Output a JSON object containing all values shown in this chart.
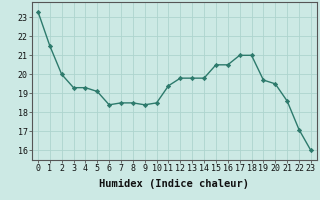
{
  "x": [
    0,
    1,
    2,
    3,
    4,
    5,
    6,
    7,
    8,
    9,
    10,
    11,
    12,
    13,
    14,
    15,
    16,
    17,
    18,
    19,
    20,
    21,
    22,
    23
  ],
  "y": [
    23.3,
    21.5,
    20.0,
    19.3,
    19.3,
    19.1,
    18.4,
    18.5,
    18.5,
    18.4,
    18.5,
    19.4,
    19.8,
    19.8,
    19.8,
    20.5,
    20.5,
    21.0,
    21.0,
    19.7,
    19.5,
    18.6,
    17.1,
    16.0
  ],
  "xlabel": "Humidex (Indice chaleur)",
  "line_color": "#2d7a6c",
  "marker": "D",
  "marker_size": 2.2,
  "line_width": 1.0,
  "bg_color": "#cce9e4",
  "grid_color": "#aed4ce",
  "axis_bg": "#cce9e4",
  "ylim": [
    15.5,
    23.8
  ],
  "xlim": [
    -0.5,
    23.5
  ],
  "yticks": [
    16,
    17,
    18,
    19,
    20,
    21,
    22,
    23
  ],
  "xticks": [
    0,
    1,
    2,
    3,
    4,
    5,
    6,
    7,
    8,
    9,
    10,
    11,
    12,
    13,
    14,
    15,
    16,
    17,
    18,
    19,
    20,
    21,
    22,
    23
  ],
  "xtick_labels": [
    "0",
    "1",
    "2",
    "3",
    "4",
    "5",
    "6",
    "7",
    "8",
    "9",
    "10",
    "11",
    "12",
    "13",
    "14",
    "15",
    "16",
    "17",
    "18",
    "19",
    "20",
    "21",
    "22",
    "23"
  ],
  "tick_fontsize": 6.0,
  "xlabel_fontsize": 7.5,
  "tick_color": "#111111",
  "spine_color": "#555555"
}
